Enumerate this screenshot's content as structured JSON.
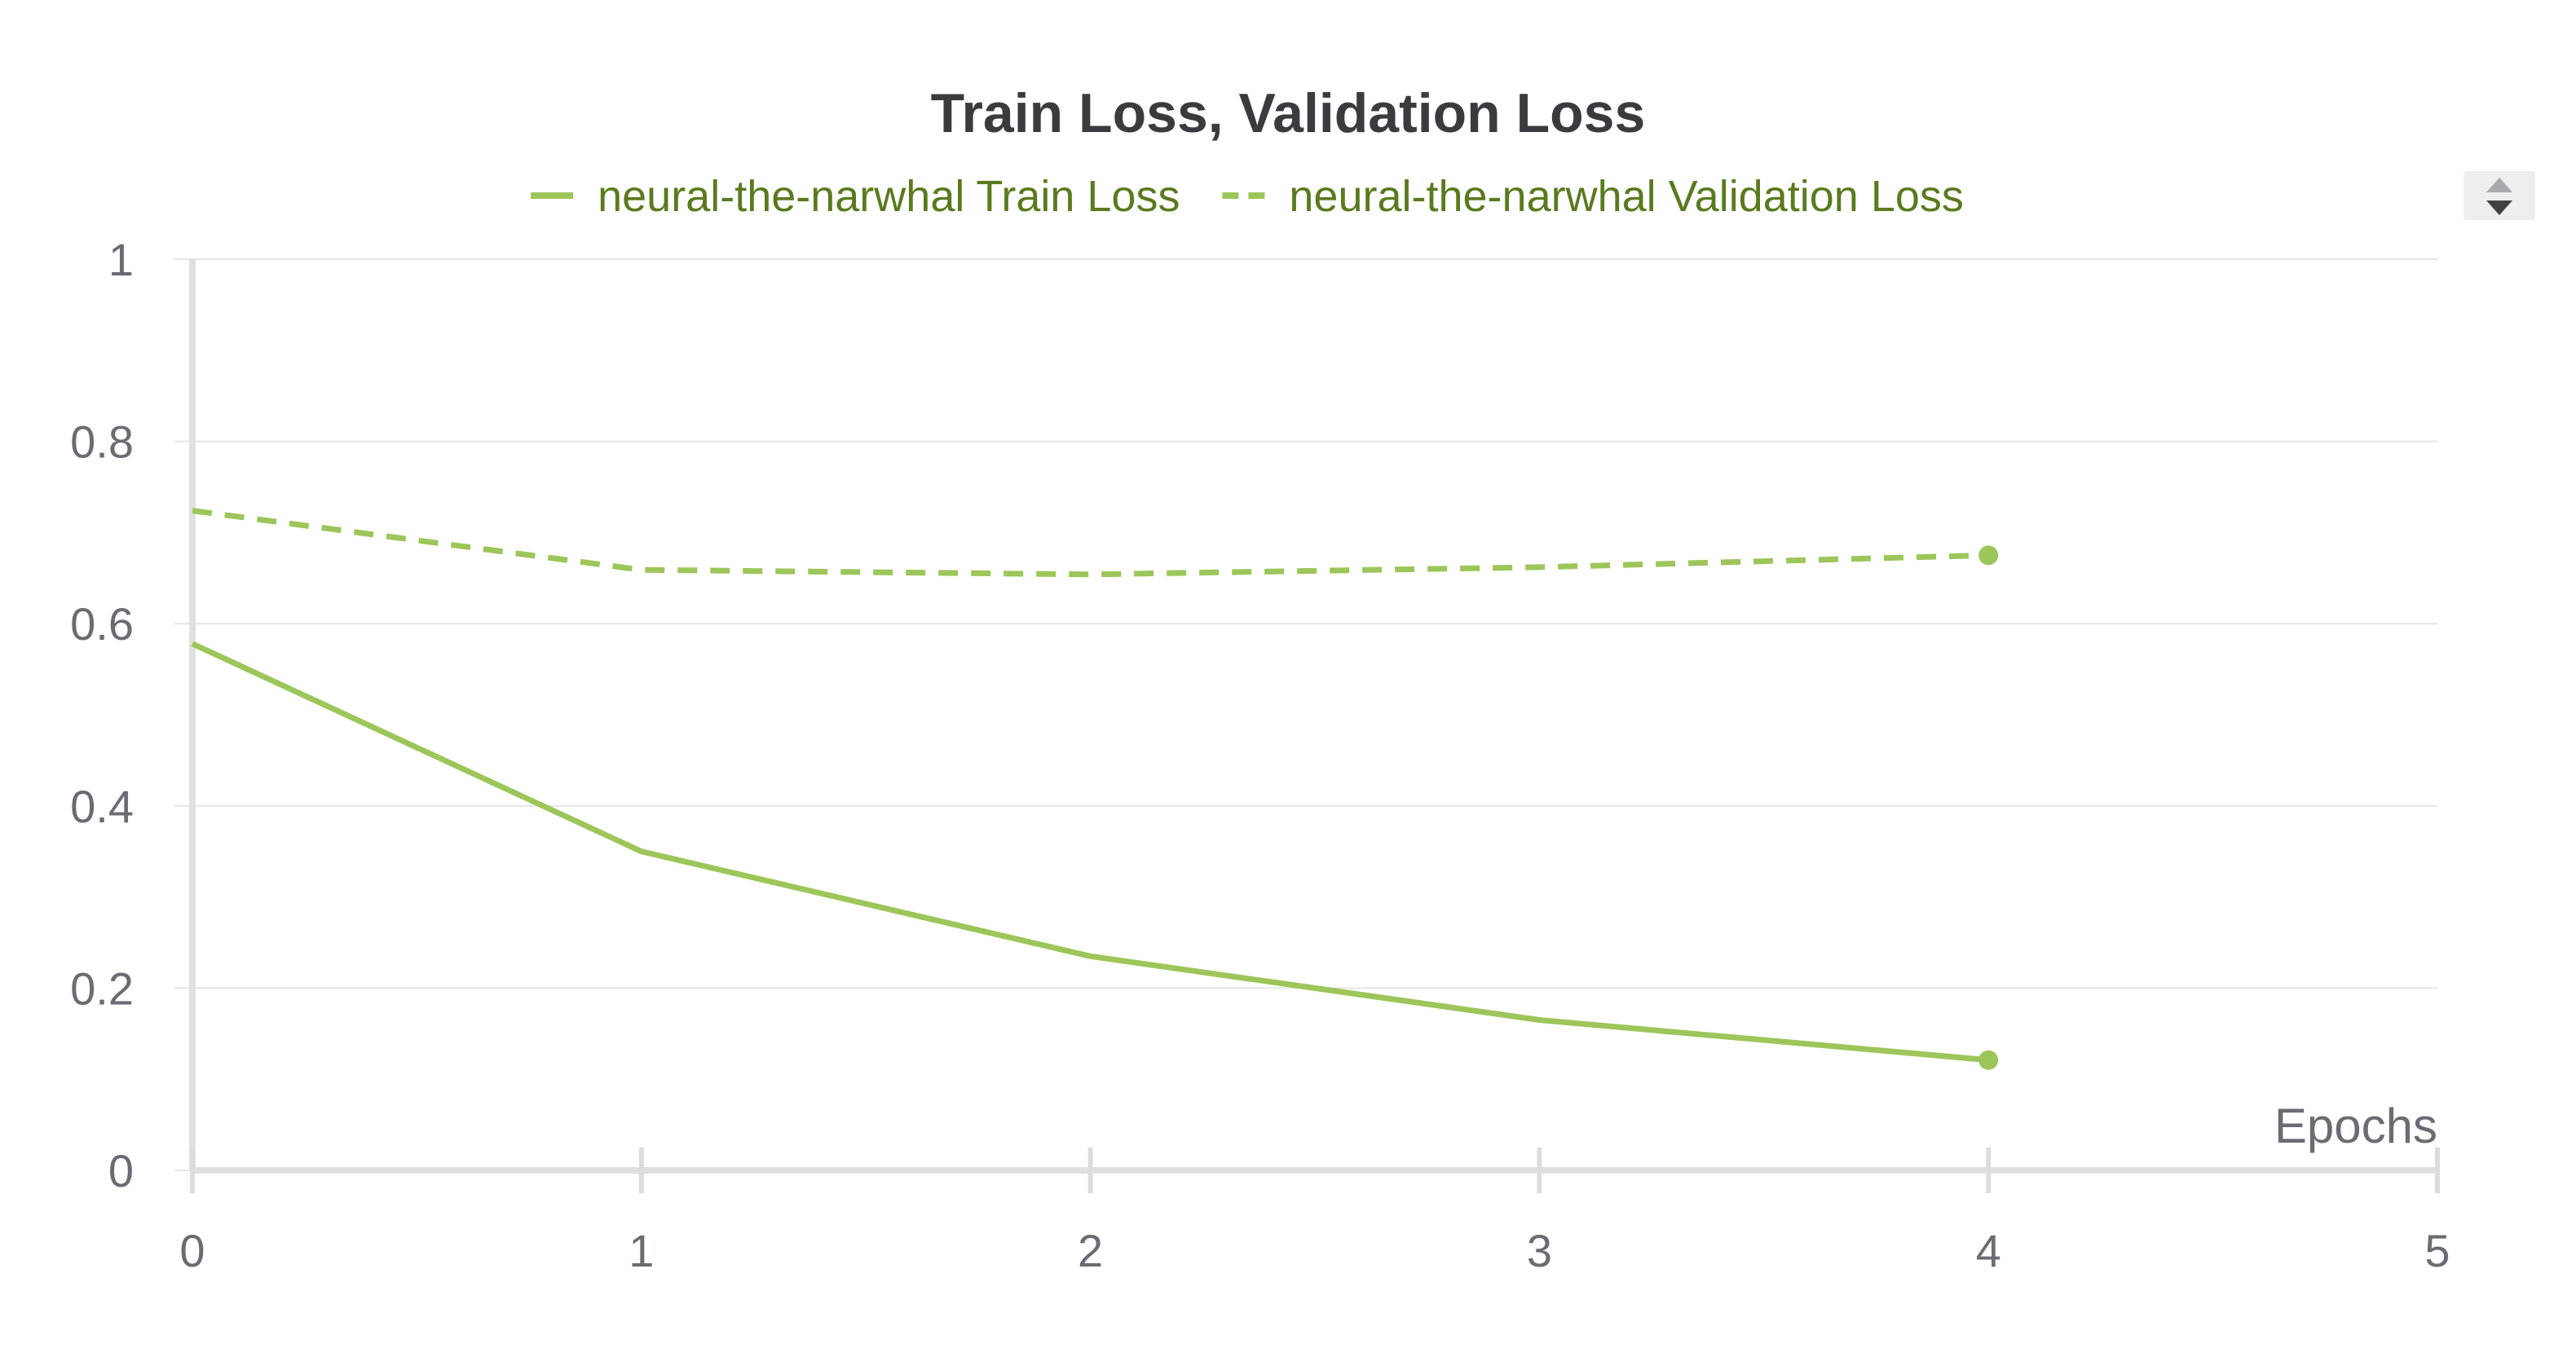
{
  "chart_data": {
    "type": "line",
    "title": "Train Loss, Validation Loss",
    "xlabel": "Epochs",
    "ylabel": "",
    "xlim": [
      0,
      5
    ],
    "ylim": [
      0,
      1
    ],
    "x_ticks": [
      "0",
      "1",
      "2",
      "3",
      "4",
      "5"
    ],
    "y_ticks": [
      "0",
      "0.2",
      "0.4",
      "0.6",
      "0.8",
      "1"
    ],
    "grid": true,
    "legend_position": "top-center",
    "series": [
      {
        "name": "neural-the-narwhal Train Loss",
        "style": "solid",
        "color": "#9cc65a",
        "x": [
          0,
          1,
          2,
          3,
          4
        ],
        "y": [
          0.578,
          0.35,
          0.235,
          0.165,
          0.121
        ]
      },
      {
        "name": "neural-the-narwhal Validation Loss",
        "style": "dashed",
        "color": "#9cc65a",
        "x": [
          0,
          1,
          2,
          3,
          4
        ],
        "y": [
          0.724,
          0.659,
          0.654,
          0.662,
          0.675
        ]
      }
    ]
  }
}
